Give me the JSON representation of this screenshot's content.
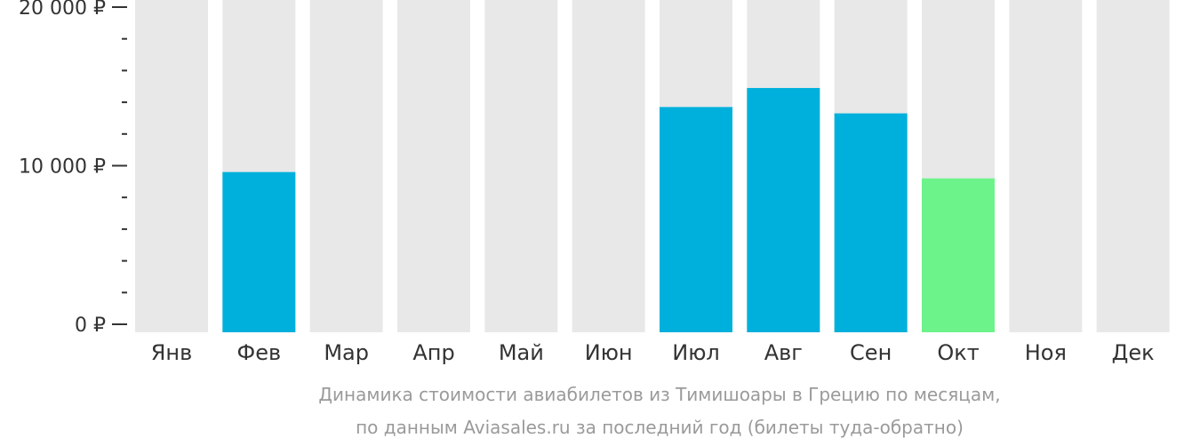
{
  "chart_data": {
    "type": "bar",
    "categories": [
      "Янв",
      "Фев",
      "Мар",
      "Апр",
      "Май",
      "Июн",
      "Июл",
      "Авг",
      "Сен",
      "Окт",
      "Ноя",
      "Дек"
    ],
    "values": [
      null,
      9600,
      null,
      null,
      null,
      null,
      13700,
      14900,
      13300,
      9200,
      null,
      null
    ],
    "highlight_index": 9,
    "ylim": [
      0,
      20000
    ],
    "yticks": [
      {
        "value": 0,
        "label": "0 ₽"
      },
      {
        "value": 10000,
        "label": "10 000 ₽"
      },
      {
        "value": 20000,
        "label": "20 000 ₽"
      }
    ],
    "minor_tick_step": 2000,
    "caption_lines": [
      "Динамика стоимости авиабилетов из Тимишоары в Грецию по месяцам,",
      "по данным Aviasales.ru за последний год (билеты туда-обратно)"
    ],
    "colors": {
      "bar": "#00b0dc",
      "highlight": "#6cf38a",
      "background_column": "#e8e8e8",
      "axis": "#333333",
      "caption": "#9a9a9a"
    }
  }
}
